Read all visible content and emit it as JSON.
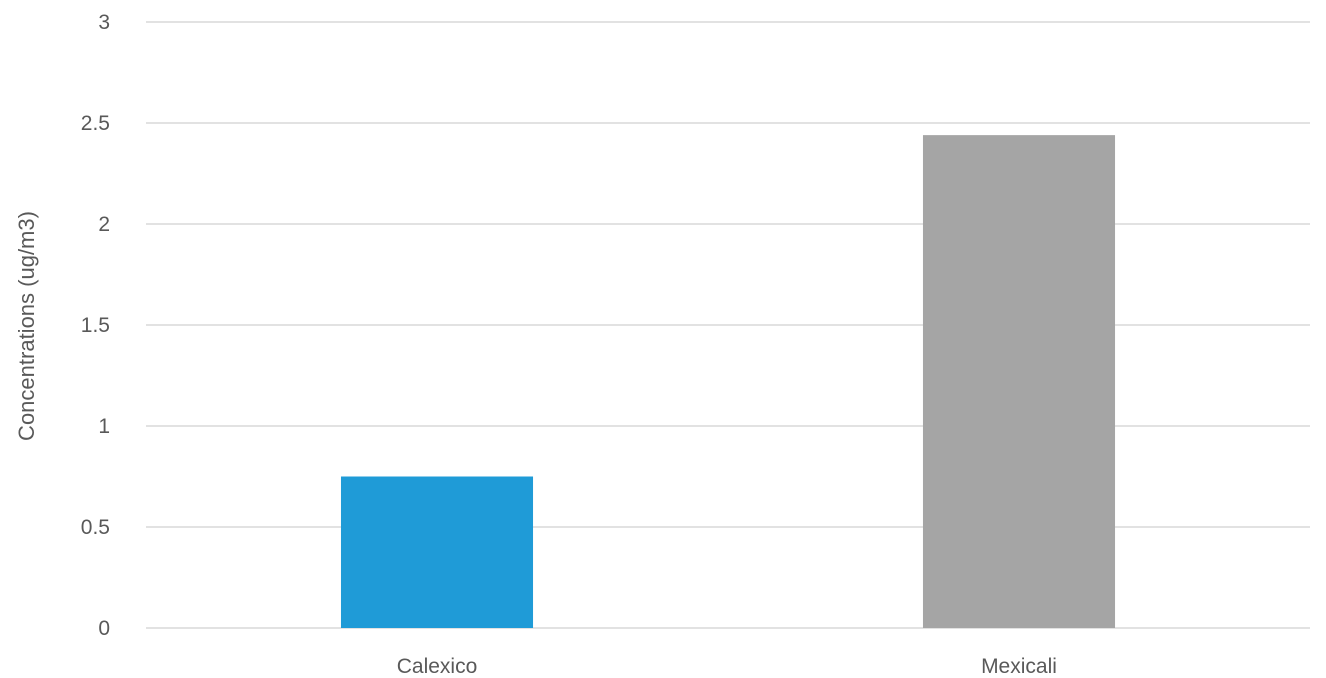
{
  "chart_data": {
    "type": "bar",
    "title": "",
    "xlabel": "",
    "ylabel": "Concentrations (ug/m3)",
    "categories": [
      "Calexico",
      "Mexicali"
    ],
    "values": [
      0.75,
      2.44
    ],
    "bar_colors": [
      "#1f9bd7",
      "#a5a5a5"
    ],
    "ylim": [
      0,
      3
    ],
    "yticks": [
      0,
      0.5,
      1,
      1.5,
      2,
      2.5,
      3
    ],
    "ytick_labels": [
      "0",
      "0.5",
      "1",
      "1.5",
      "2",
      "2.5",
      "3"
    ],
    "grid": true,
    "gridline_color": "#d9d9d9",
    "text_color": "#595959",
    "legend": "none"
  }
}
